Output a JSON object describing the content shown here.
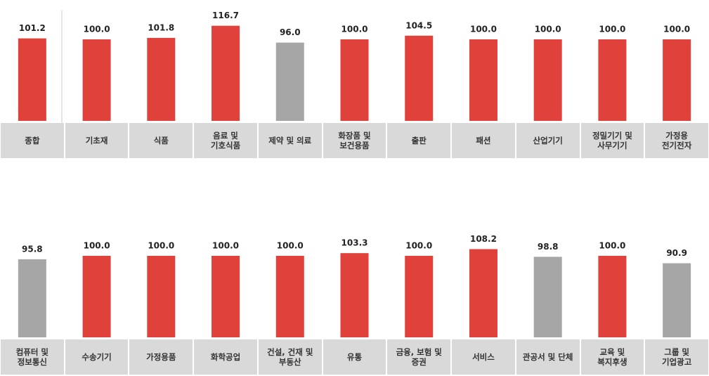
{
  "chart_data": [
    {
      "type": "bar",
      "categories": [
        "종합",
        "기초재",
        "식품",
        "음료 및\n기호식품",
        "제약 및 의료",
        "화장품 및\n보건용품",
        "출판",
        "패션",
        "산업기기",
        "정밀기기 및\n사무기기",
        "가정용\n전기전자"
      ],
      "values": [
        101.2,
        100.0,
        101.8,
        116.7,
        96.0,
        100.0,
        104.5,
        100.0,
        100.0,
        100.0,
        100.0
      ],
      "value_labels": [
        "101.2",
        "100.0",
        "101.8",
        "116.7",
        "96.0",
        "100.0",
        "104.5",
        "100.0",
        "100.0",
        "100.0",
        "100.0"
      ],
      "colors": [
        "#e0413a",
        "#e0413a",
        "#e0413a",
        "#e0413a",
        "#a6a6a6",
        "#e0413a",
        "#e0413a",
        "#e0413a",
        "#e0413a",
        "#e0413a",
        "#e0413a"
      ]
    },
    {
      "type": "bar",
      "categories": [
        "컴퓨터 및\n정보통신",
        "수송기기",
        "가정용품",
        "화학공업",
        "건설, 건재 및\n부동산",
        "유통",
        "금융, 보험 및\n증권",
        "서비스",
        "관공서 및 단체",
        "교육 및\n복지후생",
        "그룹 및\n기업광고"
      ],
      "values": [
        95.8,
        100.0,
        100.0,
        100.0,
        100.0,
        103.3,
        100.0,
        108.2,
        98.8,
        100.0,
        90.9
      ],
      "value_labels": [
        "95.8",
        "100.0",
        "100.0",
        "100.0",
        "100.0",
        "103.3",
        "100.0",
        "108.2",
        "98.8",
        "100.0",
        "90.9"
      ],
      "colors": [
        "#a6a6a6",
        "#e0413a",
        "#e0413a",
        "#e0413a",
        "#e0413a",
        "#e0413a",
        "#e0413a",
        "#e0413a",
        "#a6a6a6",
        "#e0413a",
        "#a6a6a6"
      ]
    }
  ]
}
